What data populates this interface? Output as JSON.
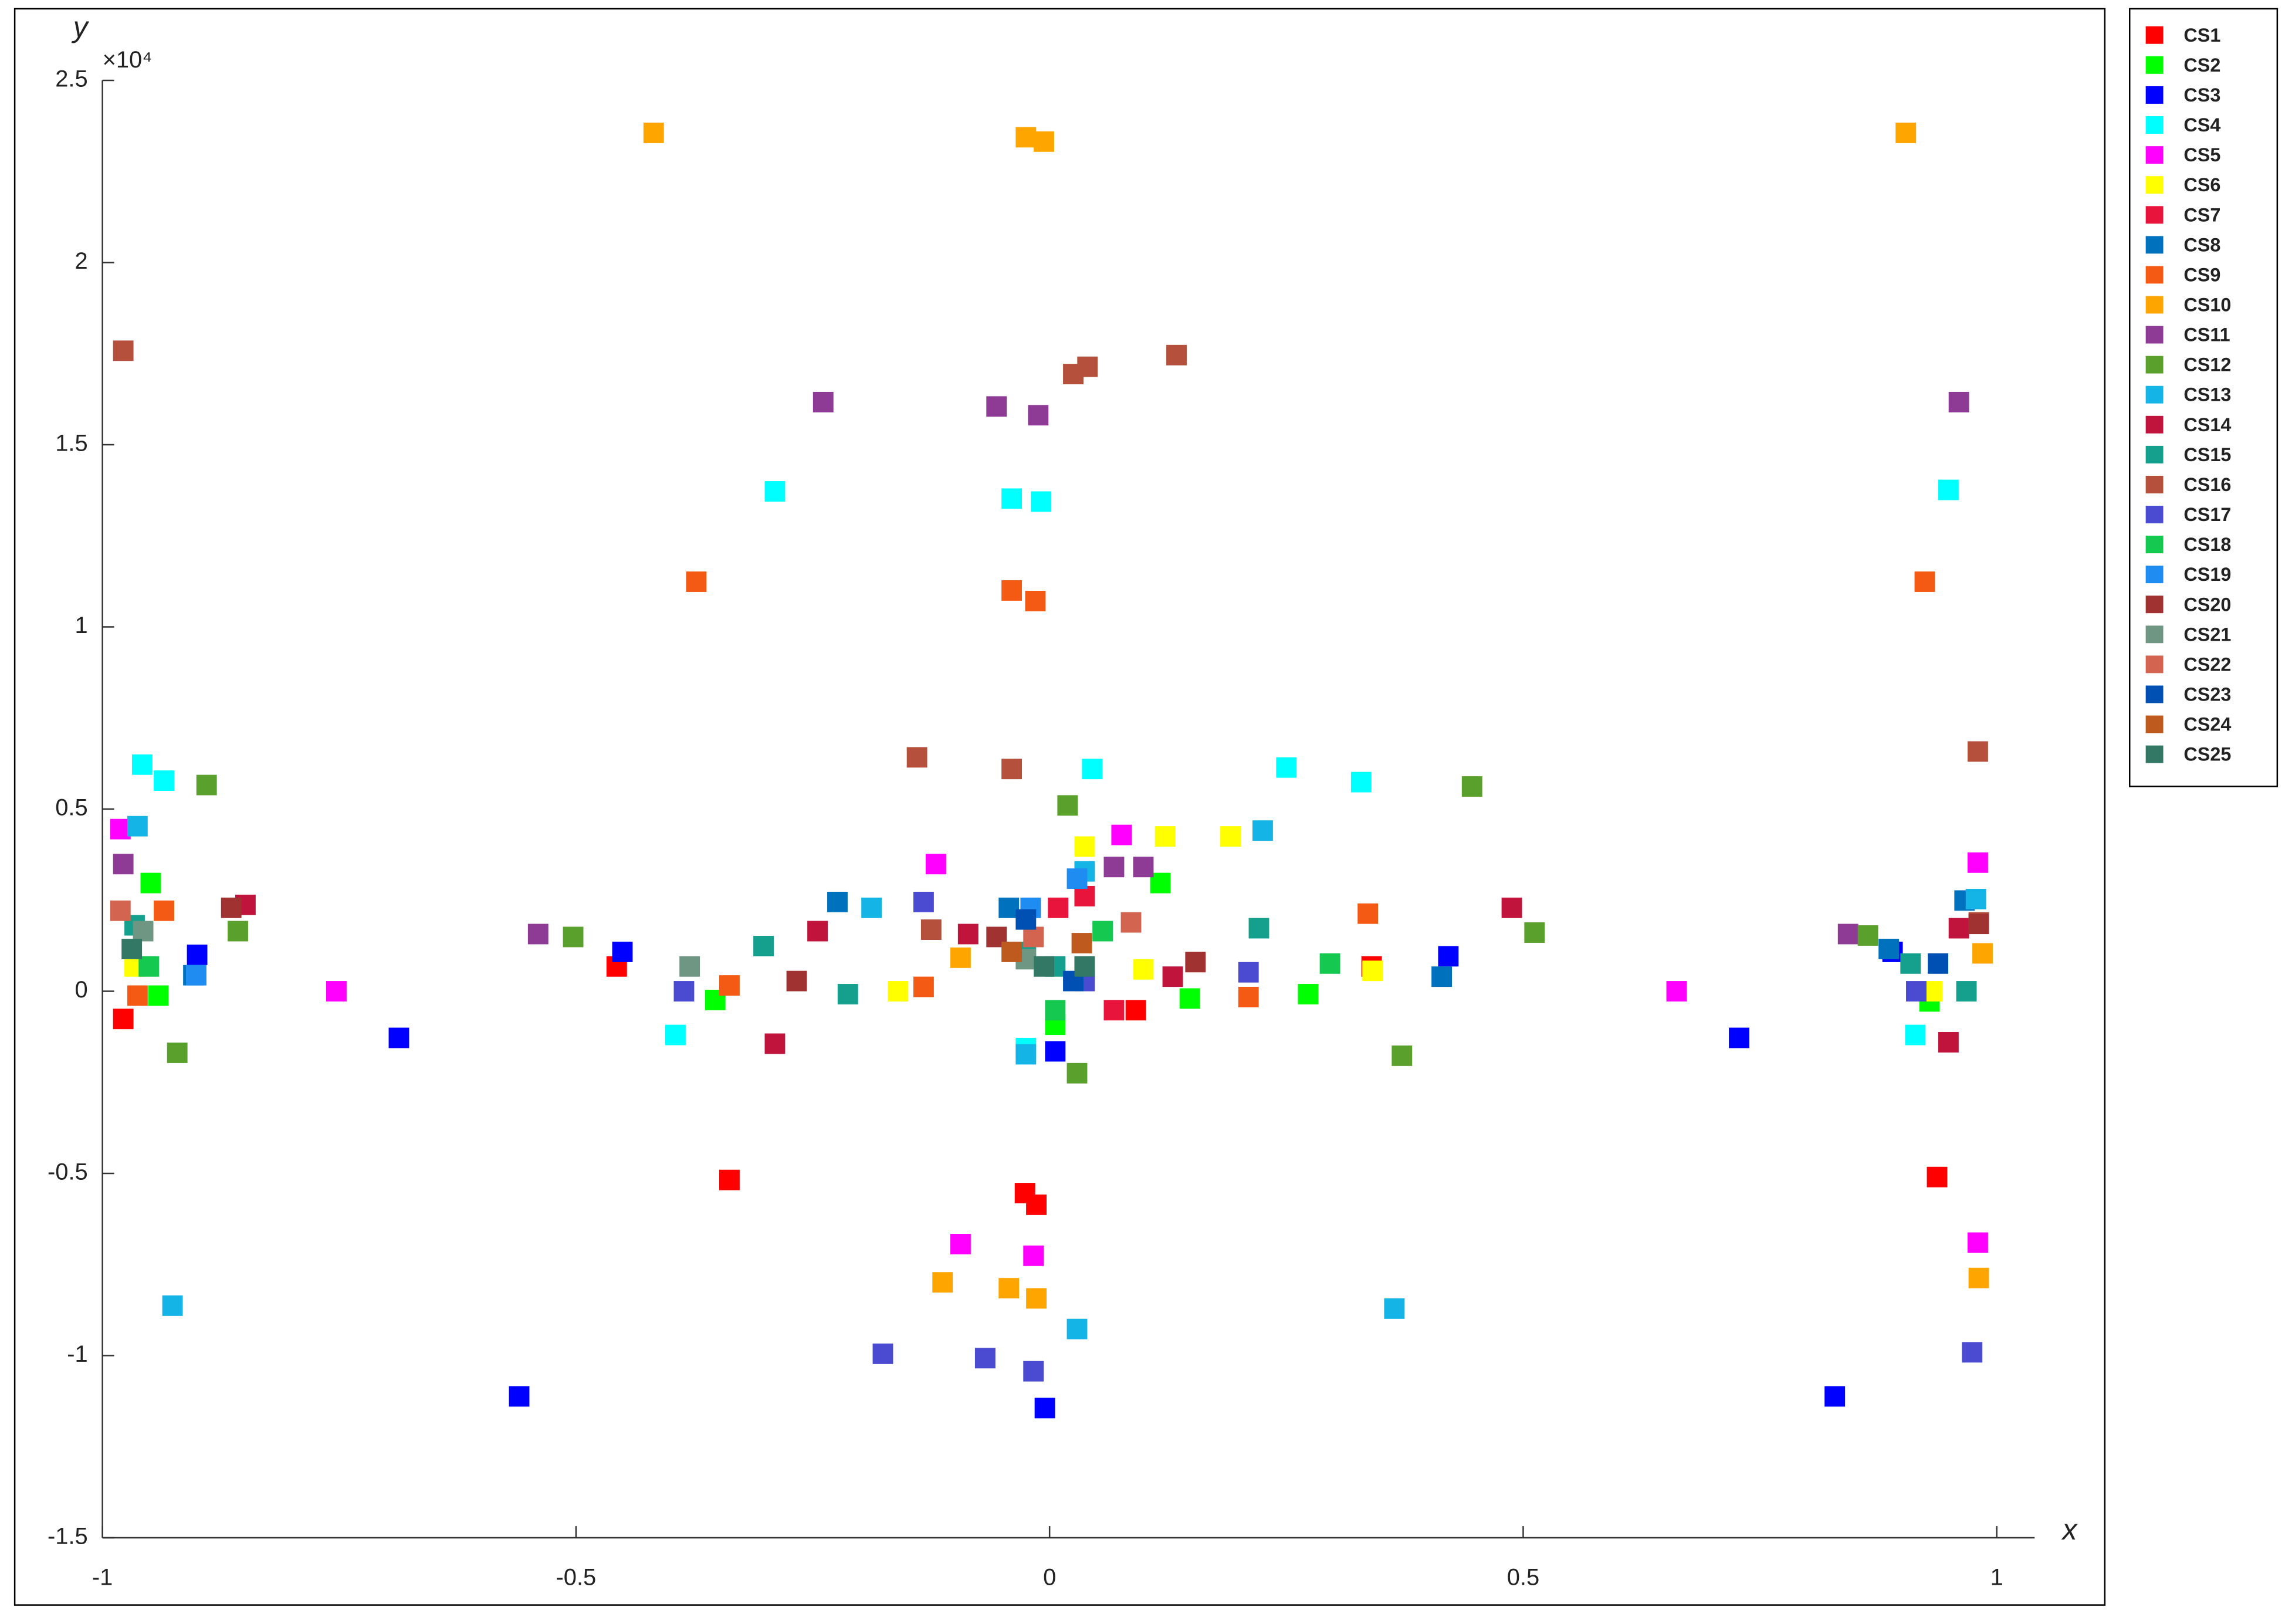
{
  "chart_data": {
    "type": "scatter",
    "x_label": "x",
    "y_label": "y",
    "exponent_label": "×10⁴",
    "xlim": [
      -1,
      1.04
    ],
    "xticks": [
      -1,
      -0.5,
      0,
      0.5,
      1
    ],
    "ylim": [
      -15000,
      25000
    ],
    "yticks": [
      {
        "value": 25000,
        "label": "2.5"
      },
      {
        "value": 20000,
        "label": "2"
      },
      {
        "value": 15000,
        "label": "1.5"
      },
      {
        "value": 10000,
        "label": "1"
      },
      {
        "value": 5000,
        "label": "0.5"
      },
      {
        "value": 0,
        "label": "0"
      },
      {
        "value": -5000,
        "label": "-0.5"
      },
      {
        "value": -10000,
        "label": "-1"
      },
      {
        "value": -15000,
        "label": "-1.5"
      }
    ],
    "grid": false,
    "legend": "outside-right",
    "series": [
      {
        "name": "CS1",
        "color": "#ff0000",
        "x": [
          -0.978,
          -0.338,
          0.937,
          -0.457,
          -0.026,
          -0.014,
          0.091,
          0.34
        ],
        "values": [
          -760,
          -5180,
          -5100,
          680,
          -5540,
          -5860,
          -520,
          680
        ]
      },
      {
        "name": "CS2",
        "color": "#00ff00",
        "x": [
          -0.949,
          -0.941,
          0.117,
          0.148,
          0.273,
          0.929,
          -0.353,
          0.006
        ],
        "values": [
          2970,
          -120,
          2970,
          -200,
          -80,
          -280,
          -240,
          -920
        ]
      },
      {
        "name": "CS3",
        "color": "#0000ff",
        "x": [
          -0.687,
          -0.56,
          -0.9,
          0.728,
          0.829,
          -0.005,
          -0.451,
          0.421,
          0.89,
          0.006
        ],
        "values": [
          -1280,
          -11120,
          1000,
          -1280,
          -11120,
          -11440,
          1080,
          960,
          1080,
          -1650
        ]
      },
      {
        "name": "CS4",
        "color": "#00ffff",
        "x": [
          -0.958,
          -0.935,
          -0.29,
          -0.395,
          0.25,
          0.329,
          0.949,
          0.914,
          -0.04,
          -0.009,
          0.045,
          -0.025
        ],
        "values": [
          6220,
          5780,
          13720,
          -1200,
          6140,
          5740,
          13760,
          -1200,
          13520,
          13440,
          6100,
          -1560
        ]
      },
      {
        "name": "CS5",
        "color": "#ff00ff",
        "x": [
          -0.981,
          -0.753,
          -0.12,
          0.662,
          0.98,
          0.98,
          -0.094,
          -0.017,
          0.076
        ],
        "values": [
          4450,
          0,
          3490,
          0,
          3530,
          -6900,
          -6940,
          -7260,
          4290
        ]
      },
      {
        "name": "CS6",
        "color": "#ffff00",
        "x": [
          -0.966,
          -0.16,
          0.122,
          0.191,
          0.341,
          0.932,
          0.037,
          0.099
        ],
        "values": [
          680,
          0,
          4250,
          4250,
          560,
          0,
          3970,
          600
        ]
      },
      {
        "name": "CS7",
        "color": "#e8143c",
        "x": [
          0.009,
          0.037,
          0.068
        ],
        "values": [
          2290,
          2610,
          -520
        ]
      },
      {
        "name": "CS8",
        "color": "#0072bd",
        "x": [
          -0.904,
          -0.224,
          -0.043,
          0.886,
          0.414,
          0.966
        ],
        "values": [
          440,
          2450,
          2290,
          1160,
          400,
          2490
        ]
      },
      {
        "name": "CS9",
        "color": "#f55a14",
        "x": [
          -0.935,
          -0.963,
          -0.373,
          -0.338,
          0.336,
          0.924,
          -0.04,
          -0.015,
          0.21,
          -0.133
        ],
        "values": [
          2210,
          -120,
          11240,
          160,
          2130,
          11240,
          11000,
          10710,
          -160,
          120
        ]
      },
      {
        "name": "CS10",
        "color": "#ffa500",
        "x": [
          -0.418,
          0.904,
          -0.025,
          -0.006,
          -0.113,
          0.981,
          -0.043,
          -0.014,
          0.985,
          -0.094
        ],
        "values": [
          23560,
          23560,
          23440,
          23320,
          -7990,
          -7870,
          -8150,
          -8430,
          1040,
          920
        ]
      },
      {
        "name": "CS11",
        "color": "#8e3b96",
        "x": [
          -0.239,
          0.96,
          -0.978,
          -0.54,
          -0.056,
          -0.012,
          0.099,
          0.843,
          0.068
        ],
        "values": [
          16170,
          16170,
          3490,
          1570,
          16050,
          15810,
          3410,
          1570,
          3410
        ]
      },
      {
        "name": "CS12",
        "color": "#5aa02c",
        "x": [
          -0.89,
          -0.921,
          -0.857,
          -0.503,
          0.446,
          0.372,
          0.512,
          0.019,
          0.029,
          0.864
        ],
        "values": [
          5660,
          -1690,
          1650,
          1490,
          5620,
          -1770,
          1610,
          5100,
          -2250,
          1530
        ]
      },
      {
        "name": "CS13",
        "color": "#14b4e6",
        "x": [
          -0.963,
          -0.926,
          -0.188,
          0.225,
          0.364,
          0.978,
          0.029,
          0.037,
          -0.025
        ],
        "values": [
          4530,
          -8630,
          2290,
          4410,
          -8710,
          2530,
          -9270,
          3290,
          -1730
        ]
      },
      {
        "name": "CS14",
        "color": "#c0143c",
        "x": [
          -0.849,
          -0.245,
          0.488,
          0.96,
          0.949,
          -0.29,
          -0.086,
          0.13
        ],
        "values": [
          2370,
          1650,
          2290,
          1730,
          -1400,
          -1440,
          1570,
          400
        ]
      },
      {
        "name": "CS15",
        "color": "#14a08c",
        "x": [
          -0.966,
          -0.302,
          -0.213,
          0.221,
          0.909,
          0.968,
          0.006,
          -0.025
        ],
        "values": [
          1810,
          1240,
          -80,
          1730,
          760,
          0,
          680,
          1080
        ]
      },
      {
        "name": "CS16",
        "color": "#b4503c",
        "x": [
          -0.978,
          0.134,
          -0.14,
          0.98,
          -0.04,
          0.04,
          -0.125,
          0.981,
          0.025
        ],
        "values": [
          17580,
          17460,
          6420,
          6580,
          6100,
          17140,
          1690,
          1890,
          16940
        ]
      },
      {
        "name": "CS17",
        "color": "#4b4bd2",
        "x": [
          -0.386,
          -0.176,
          0.974,
          0.21,
          -0.068,
          -0.017,
          -0.133,
          0.037,
          0.915
        ],
        "values": [
          0,
          -9950,
          -9910,
          520,
          -10070,
          -10430,
          2450,
          280,
          0
        ]
      },
      {
        "name": "CS18",
        "color": "#14c850",
        "x": [
          0.006,
          0.056,
          0.296,
          -0.951
        ],
        "values": [
          -520,
          1650,
          760,
          680
        ]
      },
      {
        "name": "CS19",
        "color": "#1e8cf0",
        "x": [
          -0.901,
          -0.02,
          0.029
        ],
        "values": [
          440,
          2290,
          3090
        ]
      },
      {
        "name": "CS20",
        "color": "#a03232",
        "x": [
          -0.864,
          -0.267,
          0.154,
          0.981,
          -0.056
        ],
        "values": [
          2290,
          280,
          800,
          1850,
          1490
        ]
      },
      {
        "name": "CS21",
        "color": "#6e9682",
        "x": [
          -0.957,
          -0.38,
          -0.025
        ],
        "values": [
          1650,
          680,
          880
        ]
      },
      {
        "name": "CS22",
        "color": "#d26450",
        "x": [
          -0.017,
          -0.981,
          0.086
        ],
        "values": [
          1490,
          2210,
          1890
        ]
      },
      {
        "name": "CS23",
        "color": "#0050b4",
        "x": [
          -0.025,
          0.938,
          0.025
        ],
        "values": [
          1970,
          760,
          280
        ]
      },
      {
        "name": "CS24",
        "color": "#be5a1e",
        "x": [
          -0.04,
          0.034
        ],
        "values": [
          1080,
          1320
        ]
      },
      {
        "name": "CS25",
        "color": "#327864",
        "x": [
          -0.006,
          0.037,
          -0.969
        ],
        "values": [
          680,
          680,
          1160
        ]
      }
    ]
  }
}
